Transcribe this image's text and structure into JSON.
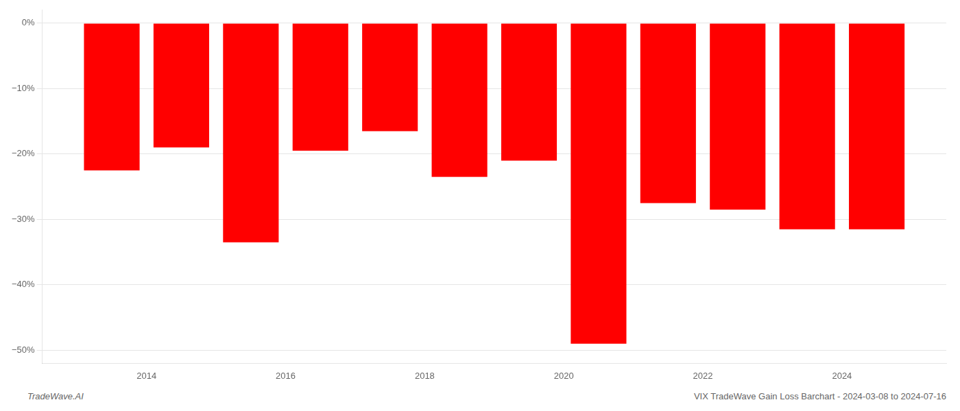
{
  "chart_data": {
    "type": "bar",
    "x": [
      2013,
      2014,
      2015,
      2016,
      2017,
      2018,
      2019,
      2020,
      2021,
      2022,
      2023,
      2024
    ],
    "values": [
      -22.5,
      -19.0,
      -33.5,
      -19.5,
      -16.5,
      -23.5,
      -21.0,
      -49.0,
      -27.5,
      -28.5,
      -31.5,
      -31.5
    ],
    "color": "#ff0000",
    "xlim": [
      2012,
      2025
    ],
    "xticks": [
      {
        "value": 2013.5,
        "label": "2014"
      },
      {
        "value": 2015.5,
        "label": "2016"
      },
      {
        "value": 2017.5,
        "label": "2018"
      },
      {
        "value": 2019.5,
        "label": "2020"
      },
      {
        "value": 2021.5,
        "label": "2022"
      },
      {
        "value": 2023.5,
        "label": "2024"
      }
    ],
    "ylim": [
      -52,
      2
    ],
    "yticks": [
      {
        "value": 0,
        "label": "0%"
      },
      {
        "value": -10,
        "label": "−10%"
      },
      {
        "value": -20,
        "label": "−20%"
      },
      {
        "value": -30,
        "label": "−30%"
      },
      {
        "value": -40,
        "label": "−40%"
      },
      {
        "value": -50,
        "label": "−50%"
      }
    ],
    "grid": "y",
    "annotations": [
      "TradeWave.AI",
      "VIX TradeWave Gain Loss Barchart - 2024-03-08 to 2024-07-16"
    ]
  }
}
